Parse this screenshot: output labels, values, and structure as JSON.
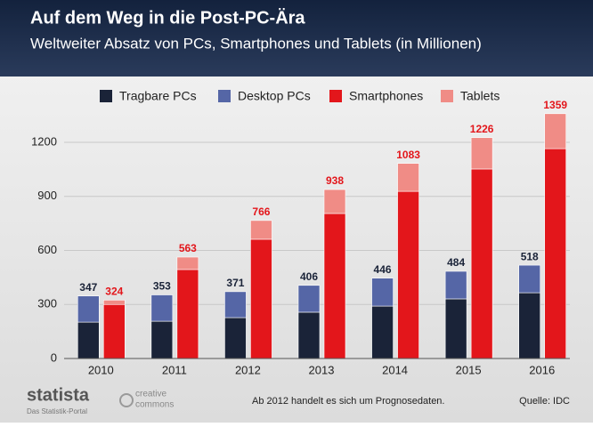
{
  "chart_data": {
    "type": "stacked-bar",
    "title": "Auf dem Weg in die Post-PC-Ära",
    "subtitle": "Weltweiter Absatz von PCs, Smartphones und Tablets (in Millionen)",
    "categories": [
      "2010",
      "2011",
      "2012",
      "2013",
      "2014",
      "2015",
      "2016"
    ],
    "groups": [
      {
        "totals": [
          347,
          353,
          371,
          406,
          446,
          484,
          518
        ],
        "color": "#1a2338"
      },
      {
        "totals": [
          324,
          563,
          766,
          938,
          1083,
          1226,
          1359
        ],
        "color": "#e3161b"
      }
    ],
    "series": [
      {
        "name": "Tragbare PCs",
        "color": "#1a2338",
        "group": 0,
        "values": [
          202,
          207,
          227,
          257,
          291,
          331,
          365
        ]
      },
      {
        "name": "Desktop PCs",
        "color": "#5566a6",
        "group": 0,
        "values": [
          145,
          146,
          144,
          149,
          155,
          153,
          153
        ]
      },
      {
        "name": "Smartphones",
        "color": "#e3161b",
        "group": 1,
        "values": [
          300,
          494,
          662,
          805,
          928,
          1052,
          1165
        ]
      },
      {
        "name": "Tablets",
        "color": "#f08c86",
        "group": 1,
        "values": [
          24,
          69,
          104,
          133,
          155,
          174,
          194
        ]
      }
    ],
    "ylim": [
      0,
      1400
    ],
    "yticks": [
      0,
      300,
      600,
      900,
      1200
    ],
    "grid": true,
    "legend": "top",
    "note": "Ab 2012 handelt es sich um Prognosedaten.",
    "source": "Quelle: IDC",
    "brand": "statista",
    "brand_tagline": "Das Statistik-Portal",
    "license_top": "creative",
    "license_bottom": "commons"
  }
}
